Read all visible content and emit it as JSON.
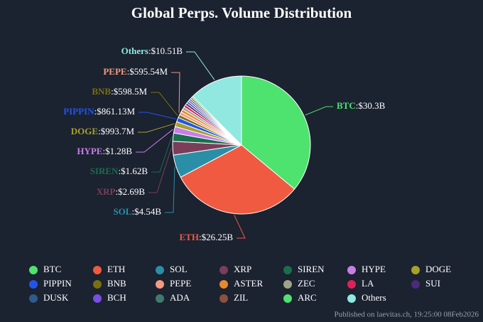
{
  "chart_data": {
    "type": "pie",
    "title": "Global Perps. Volume Distribution",
    "source": "Published on laevitas.ch, 19:25:00 08Feb2026",
    "label_separator": ":",
    "categories": [
      "BTC",
      "ETH",
      "SOL",
      "XRP",
      "SIREN",
      "HYPE",
      "DOGE",
      "PIPPIN",
      "BNB",
      "PEPE",
      "ASTER",
      "ZEC",
      "LA",
      "SUI",
      "DUSK",
      "BCH",
      "ADA",
      "ZIL",
      "ARC",
      "Others"
    ],
    "values": [
      30300000000,
      26250000000,
      4540000000,
      2690000000,
      1620000000,
      1280000000,
      993700000,
      861130000,
      598500000,
      595540000,
      580000000,
      550000000,
      500000000,
      450000000,
      400000000,
      380000000,
      350000000,
      320000000,
      300000000,
      10510000000
    ],
    "value_labels": [
      "$30.3B",
      "$26.25B",
      "$4.54B",
      "$2.69B",
      "$1.62B",
      "$1.28B",
      "$993.7M",
      "$861.13M",
      "$598.5M",
      "$595.54M",
      null,
      null,
      null,
      null,
      null,
      null,
      null,
      null,
      null,
      "$10.51B"
    ],
    "colors": [
      "#4ee26f",
      "#f05a40",
      "#2a8fa6",
      "#7a3e5a",
      "#1a6e4e",
      "#c77ee8",
      "#a8a02a",
      "#2255e6",
      "#7a6f10",
      "#f29a80",
      "#e68a2e",
      "#a0a58a",
      "#e0205a",
      "#4a2a7a",
      "#2f5a8a",
      "#7a4ee0",
      "#3f7a70",
      "#8a5040",
      "#50e070",
      "#90e8e0"
    ]
  }
}
